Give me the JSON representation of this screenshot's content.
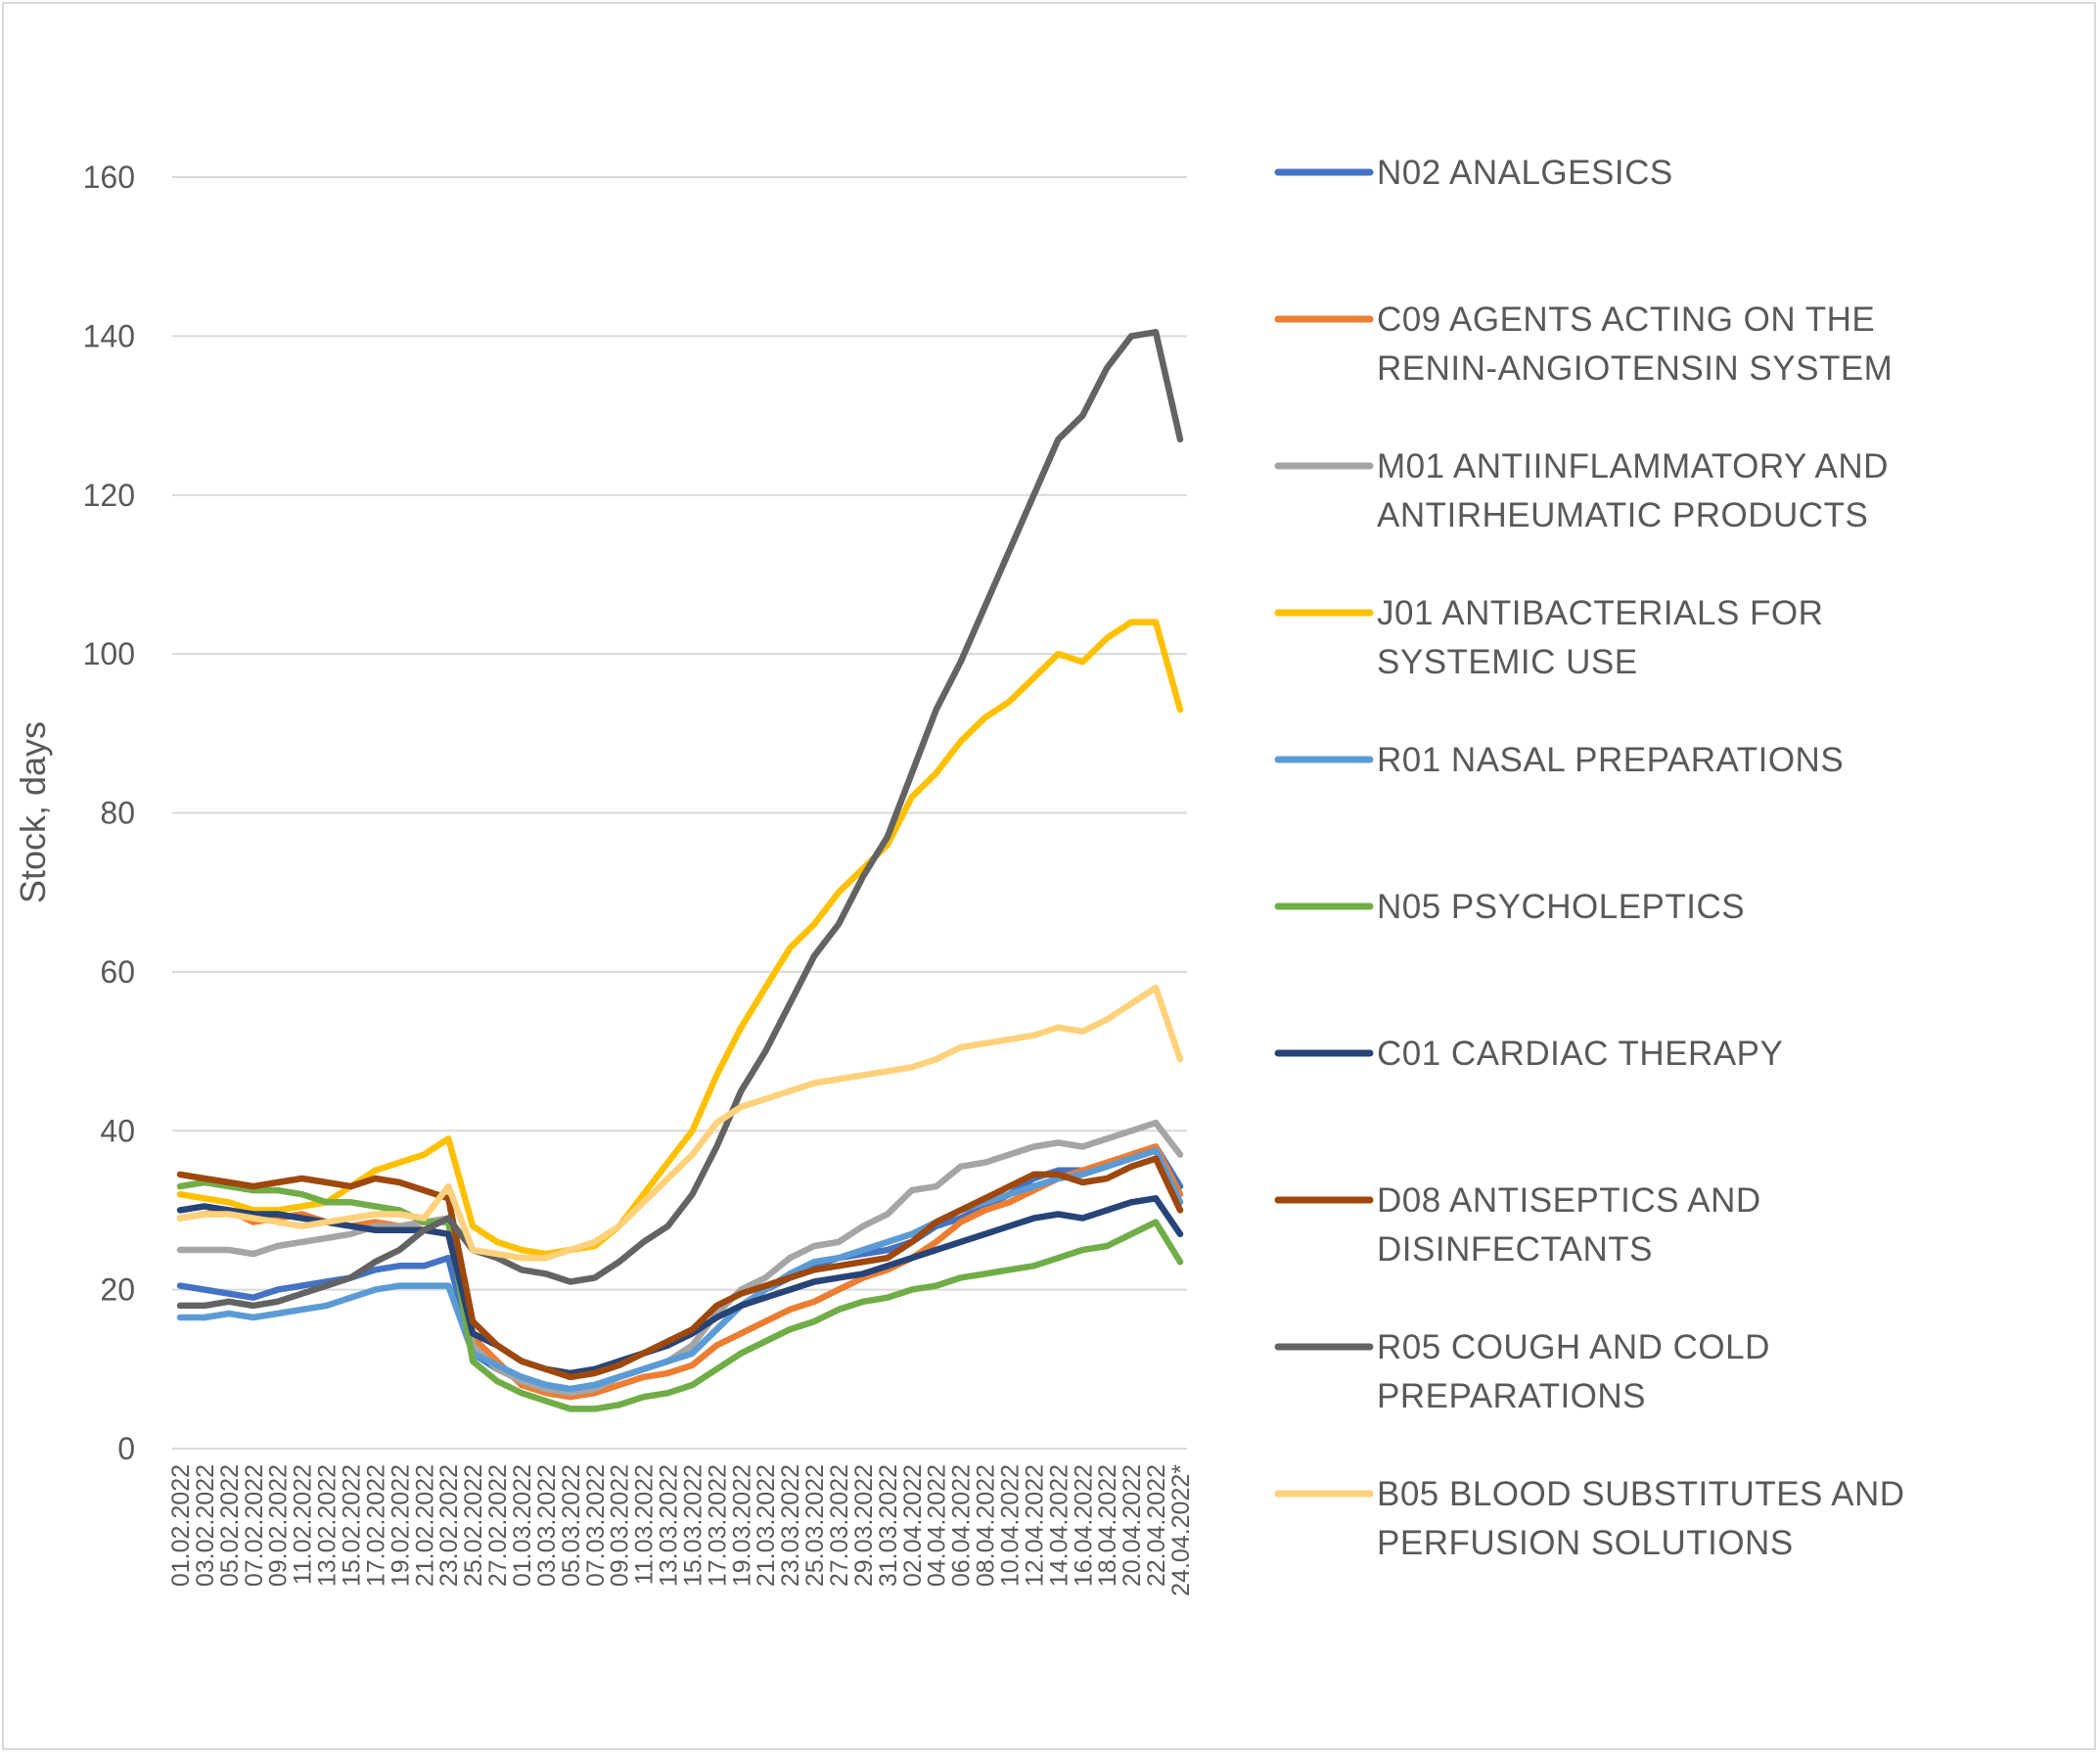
{
  "chart_data": {
    "type": "line",
    "title": "",
    "xlabel": "",
    "ylabel": "Stock, days",
    "ylim": [
      0,
      160
    ],
    "yticks": [
      0,
      20,
      40,
      60,
      80,
      100,
      120,
      140,
      160
    ],
    "grid": true,
    "legend": "right",
    "x": [
      "01.02.2022",
      "03.02.2022",
      "05.02.2022",
      "07.02.2022",
      "09.02.2022",
      "11.02.2022",
      "13.02.2022",
      "15.02.2022",
      "17.02.2022",
      "19.02.2022",
      "21.02.2022",
      "23.02.2022",
      "25.02.2022",
      "27.02.2022",
      "01.03.2022",
      "03.03.2022",
      "05.03.2022",
      "07.03.2022",
      "09.03.2022",
      "11.03.2022",
      "13.03.2022",
      "15.03.2022",
      "17.03.2022",
      "19.03.2022",
      "21.03.2022",
      "23.03.2022",
      "25.03.2022",
      "27.03.2022",
      "29.03.2022",
      "31.03.2022",
      "02.04.2022",
      "04.04.2022",
      "06.04.2022",
      "08.04.2022",
      "10.04.2022",
      "12.04.2022",
      "14.04.2022",
      "16.04.2022",
      "18.04.2022",
      "20.04.2022",
      "22.04.2022",
      "24.04.2022*"
    ],
    "series": [
      {
        "name": "N02 ANALGESICS",
        "color": "#4472C4",
        "values": [
          20.5,
          20,
          19.5,
          19,
          20,
          20.5,
          21,
          21.5,
          22.5,
          23,
          23,
          24,
          12,
          10,
          9,
          8,
          7.5,
          8,
          9,
          10,
          11,
          12,
          15,
          18,
          20,
          21.5,
          23,
          24,
          24.5,
          25,
          26,
          28,
          29,
          30.5,
          32,
          34,
          35,
          35,
          35.5,
          37,
          38,
          33
        ]
      },
      {
        "name": "C09 AGENTS ACTING ON THE RENIN-ANGIOTENSIN SYSTEM",
        "color": "#ED7D31",
        "values": [
          29,
          29.5,
          30,
          28.5,
          29,
          29.5,
          28.5,
          28,
          28.5,
          28,
          27.5,
          27,
          14,
          11,
          8,
          7,
          6.5,
          7,
          8,
          9,
          9.5,
          10.5,
          13,
          14.5,
          16,
          17.5,
          18.5,
          20,
          21.5,
          22.5,
          24,
          26,
          28.5,
          30,
          31,
          32.5,
          34,
          35,
          36,
          37,
          38,
          32
        ]
      },
      {
        "name": "M01 ANTIINFLAMMATORY AND ANTIRHEUMATIC PRODUCTS",
        "color": "#A5A5A5",
        "values": [
          25,
          25,
          25,
          24.5,
          25.5,
          26,
          26.5,
          27,
          28,
          28,
          28.5,
          29,
          13,
          10,
          8.5,
          7.5,
          7,
          7.5,
          9,
          10,
          11,
          13,
          17,
          20,
          21.5,
          24,
          25.5,
          26,
          28,
          29.5,
          32.5,
          33,
          35.5,
          36,
          37,
          38,
          38.5,
          38,
          39,
          40,
          41,
          37
        ]
      },
      {
        "name": "J01 ANTIBACTERIALS FOR SYSTEMIC USE",
        "color": "#FFC000",
        "values": [
          32,
          31.5,
          31,
          30,
          30,
          30.5,
          31,
          33,
          35,
          36,
          37,
          39,
          28,
          26,
          25,
          24.5,
          25,
          25.5,
          28,
          32,
          36,
          40,
          47,
          53,
          58,
          63,
          66,
          70,
          73,
          76,
          82,
          85,
          89,
          92,
          94,
          97,
          100,
          99,
          102,
          104,
          104,
          93
        ]
      },
      {
        "name": "R01 NASAL PREPARATIONS",
        "color": "#5B9BD5",
        "values": [
          16.5,
          16.5,
          17,
          16.5,
          17,
          17.5,
          18,
          19,
          20,
          20.5,
          20.5,
          20.5,
          12,
          10.5,
          9,
          8,
          7.5,
          8,
          9,
          10,
          11,
          12,
          15,
          18,
          20,
          22,
          23.5,
          24,
          25,
          26,
          27,
          28.5,
          30,
          31,
          32,
          33,
          34,
          34.5,
          35.5,
          36.5,
          37.5,
          31
        ]
      },
      {
        "name": "N05 PSYCHOLEPTICS",
        "color": "#70AD47",
        "values": [
          33,
          33.5,
          33,
          32.5,
          32.5,
          32,
          31,
          31,
          30.5,
          30,
          28.5,
          28.5,
          11,
          8.5,
          7,
          6,
          5,
          5,
          5.5,
          6.5,
          7,
          8,
          10,
          12,
          13.5,
          15,
          16,
          17.5,
          18.5,
          19,
          20,
          20.5,
          21.5,
          22,
          22.5,
          23,
          24,
          25,
          25.5,
          27,
          28.5,
          23.5
        ]
      },
      {
        "name": "C01 CARDIAC THERAPY",
        "color": "#264478",
        "values": [
          30,
          30.5,
          30,
          29.5,
          29.5,
          29,
          28.5,
          28,
          27.5,
          27.5,
          27.5,
          27,
          14.5,
          13,
          11,
          10,
          9.5,
          10,
          11,
          12,
          13,
          14.5,
          16.5,
          18,
          19,
          20,
          21,
          21.5,
          22,
          23,
          24,
          25,
          26,
          27,
          28,
          29,
          29.5,
          29,
          30,
          31,
          31.5,
          27
        ]
      },
      {
        "name": "D08 ANTISEPTICS AND DISINFECTANTS",
        "color": "#9E480E",
        "values": [
          34.5,
          34,
          33.5,
          33,
          33.5,
          34,
          33.5,
          33,
          34,
          33.5,
          32.5,
          31.5,
          16,
          13,
          11,
          10,
          9,
          9.5,
          10.5,
          12,
          13.5,
          15,
          18,
          19.5,
          20.5,
          21.5,
          22.5,
          23,
          23.5,
          24,
          26,
          28.5,
          30,
          31.5,
          33,
          34.5,
          34.5,
          33.5,
          34,
          35.5,
          36.5,
          30
        ]
      },
      {
        "name": "R05 COUGH AND COLD PREPARATIONS",
        "color": "#636363",
        "values": [
          18,
          18,
          18.5,
          18,
          18.5,
          19.5,
          20.5,
          21.5,
          23.5,
          25,
          27.5,
          29,
          25,
          24,
          22.5,
          22,
          21,
          21.5,
          23.5,
          26,
          28,
          32,
          38,
          45,
          50,
          56,
          62,
          66,
          72,
          77,
          85,
          93,
          99,
          106,
          113,
          120,
          127,
          130,
          136,
          140,
          140.5,
          127
        ]
      },
      {
        "name": "B05 BLOOD SUBSTITUTES AND PERFUSION SOLUTIONS",
        "color": "#FFD17A",
        "values": [
          29,
          29.5,
          29.5,
          29,
          28.5,
          28,
          28.5,
          29,
          29.5,
          29.5,
          29,
          33,
          25,
          24.5,
          24,
          24,
          25,
          26,
          28,
          31,
          34,
          37,
          41,
          43,
          44,
          45,
          46,
          46.5,
          47,
          47.5,
          48,
          49,
          50.5,
          51,
          51.5,
          52,
          53,
          52.5,
          54,
          56,
          58,
          49
        ]
      }
    ]
  }
}
